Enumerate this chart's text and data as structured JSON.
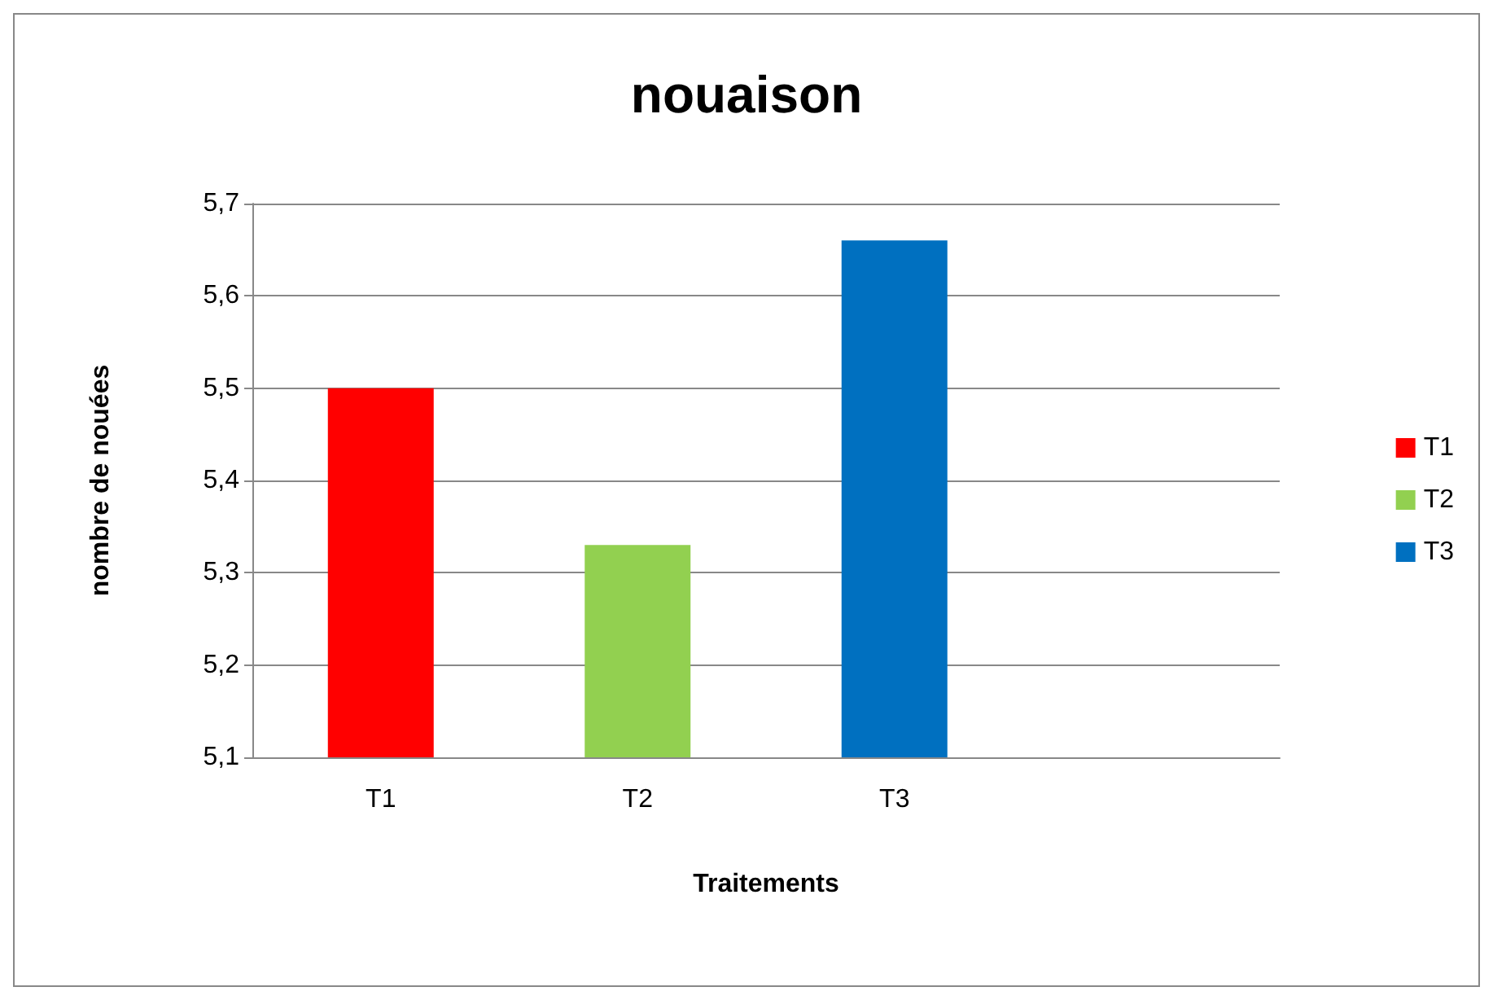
{
  "chart_data": {
    "type": "bar",
    "title": "nouaison",
    "xlabel": "Traitements",
    "ylabel": "nombre de nouées",
    "categories": [
      "T1",
      "T2",
      "T3",
      null
    ],
    "series": [
      {
        "name": "T1",
        "color": "#ff0000",
        "values": [
          5.5,
          null,
          null,
          null
        ]
      },
      {
        "name": "T2",
        "color": "#92d050",
        "values": [
          null,
          5.33,
          null,
          null
        ]
      },
      {
        "name": "T3",
        "color": "#0070c0",
        "values": [
          null,
          null,
          5.66,
          null
        ]
      }
    ],
    "ylim": [
      5.1,
      5.7
    ],
    "yticks": [
      {
        "value": 5.1,
        "label": "5,1"
      },
      {
        "value": 5.2,
        "label": "5,2"
      },
      {
        "value": 5.3,
        "label": "5,3"
      },
      {
        "value": 5.4,
        "label": "5,4"
      },
      {
        "value": 5.5,
        "label": "5,5"
      },
      {
        "value": 5.6,
        "label": "5,6"
      },
      {
        "value": 5.7,
        "label": "5,7"
      }
    ],
    "grid": "y",
    "legend": "right"
  }
}
